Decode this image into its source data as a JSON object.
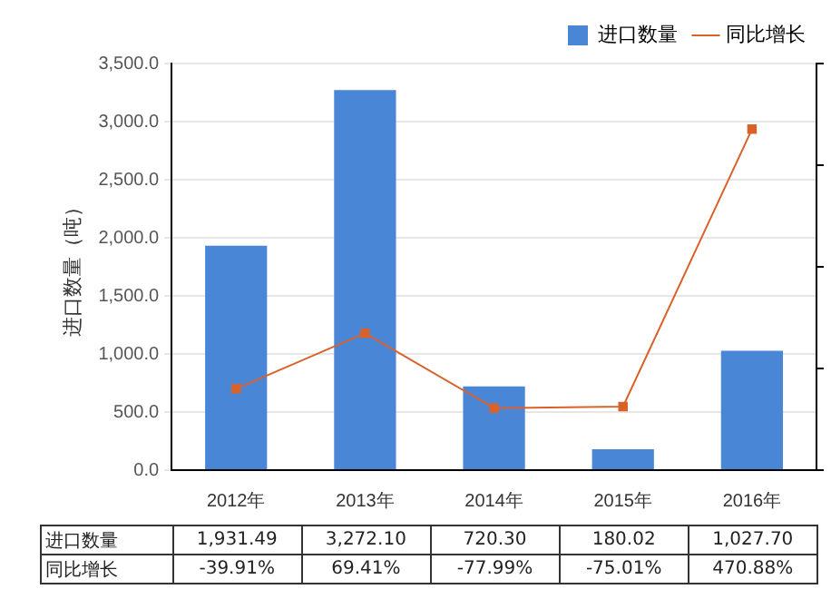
{
  "chart_data": {
    "type": "bar",
    "ylabel": "进口数量（吨）",
    "categories": [
      "2012年",
      "2013年",
      "2014年",
      "2015年",
      "2016年"
    ],
    "series": [
      {
        "name": "进口数量",
        "color": "#4a86d6",
        "values": [
          1931.49,
          3272.1,
          720.3,
          180.02,
          1027.7
        ],
        "value_labels": [
          "1,931.49",
          "3,272.10",
          "720.30",
          "180.02",
          "1,027.70"
        ]
      },
      {
        "name": "同比增长",
        "type": "line",
        "axis": "y2",
        "color": "#d9622b",
        "values": [
          -39.91,
          69.41,
          -77.99,
          -75.01,
          470.88
        ],
        "value_labels": [
          "-39.91%",
          "69.41%",
          "-77.99%",
          "-75.01%",
          "470.88%"
        ]
      }
    ],
    "ylim": [
      0,
      3500
    ],
    "yticks": [
      {
        "value": 0,
        "label": "0.0"
      },
      {
        "value": 500,
        "label": "500.0"
      },
      {
        "value": 1000,
        "label": "1,000.0"
      },
      {
        "value": 1500,
        "label": "1,500.0"
      },
      {
        "value": 2000,
        "label": "2,000.0"
      },
      {
        "value": 2500,
        "label": "2,500.0"
      },
      {
        "value": 3000,
        "label": "3,000.0"
      },
      {
        "value": 3500,
        "label": "3,500.0"
      }
    ],
    "y2lim": [
      -200,
      600
    ],
    "y2ticks": [
      {
        "value": -200,
        "label": null
      },
      {
        "value": 0,
        "label": null
      },
      {
        "value": 200,
        "label": null
      },
      {
        "value": 400,
        "label": null
      },
      {
        "value": 600,
        "label": null
      }
    ],
    "grid": "y",
    "legend": "top right",
    "marker": "square"
  }
}
